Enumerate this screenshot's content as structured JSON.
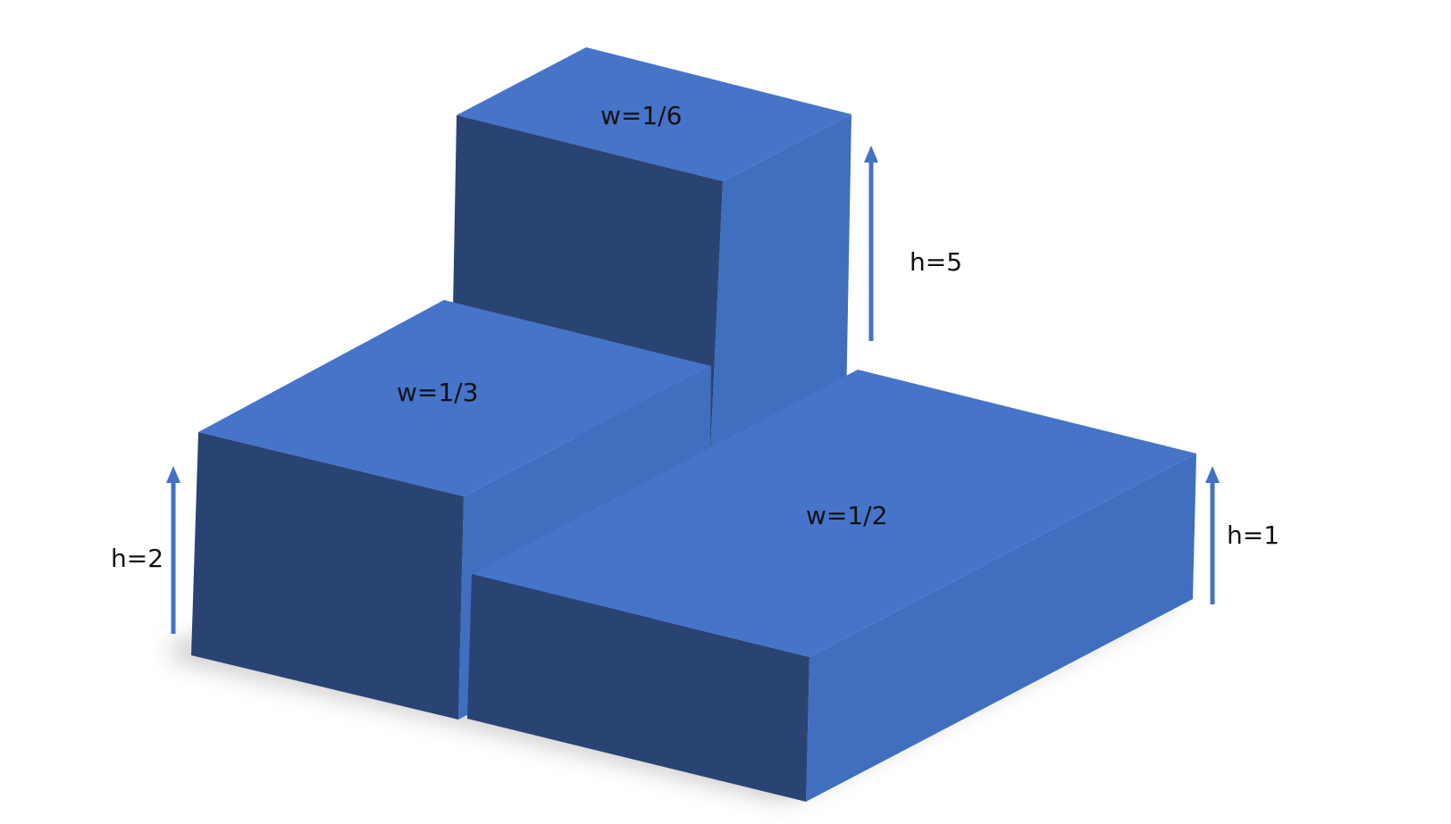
{
  "colors": {
    "top_face": "#4674C9",
    "side_face": "#3F6FBE",
    "front_face": "#294373",
    "arrow": "#4472C4",
    "shadow": "#9a9a9a"
  },
  "blocks": {
    "tall": {
      "width_label": "w=1/6",
      "height_label": "h=5"
    },
    "left": {
      "width_label": "w=1/3",
      "height_label": "h=2"
    },
    "right": {
      "width_label": "w=1/2",
      "height_label": "h=1"
    }
  }
}
